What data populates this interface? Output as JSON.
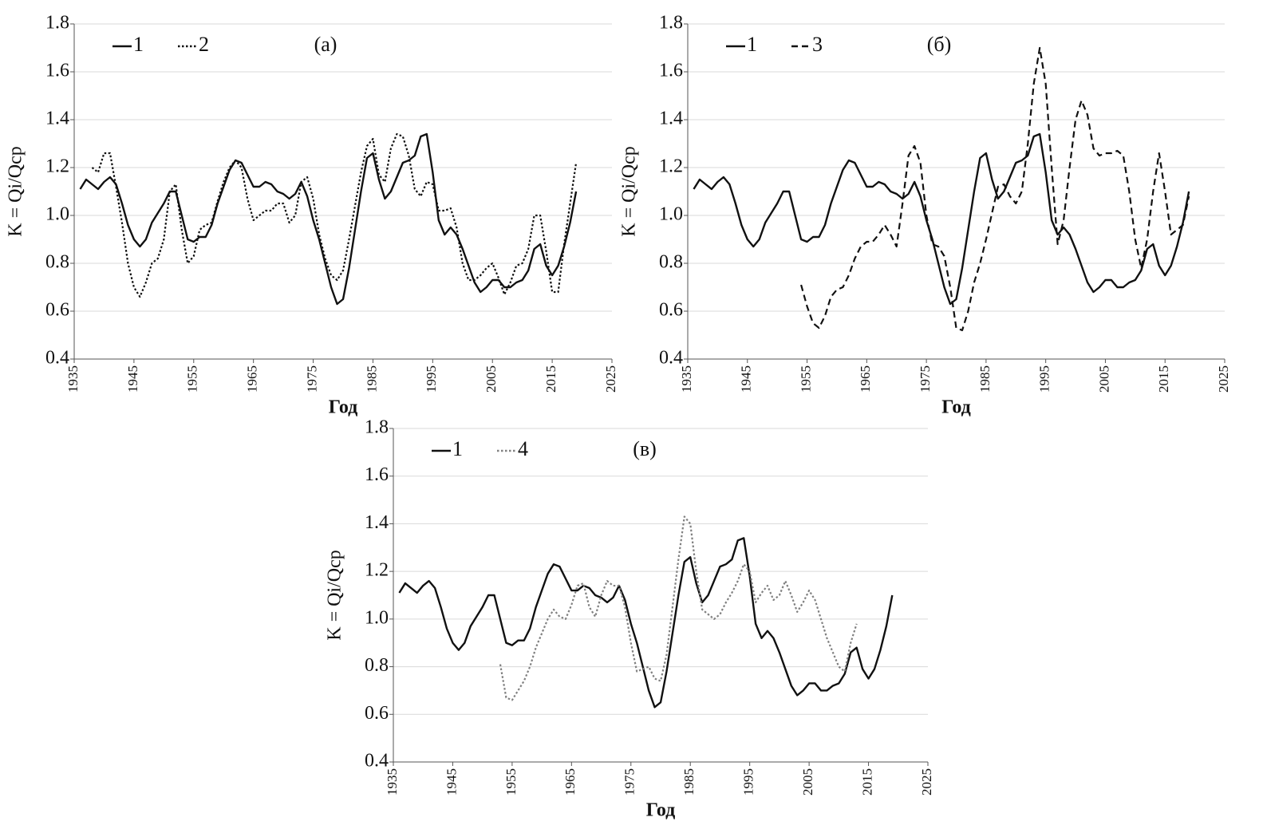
{
  "chart_data": [
    {
      "type": "line",
      "title": "(а)",
      "xlabel": "Год",
      "ylabel": "K = Qi/Qcp",
      "grid": true,
      "xlim": [
        1935,
        2025
      ],
      "ylim": [
        0.4,
        1.8
      ],
      "xticks": [
        1935,
        1945,
        1955,
        1965,
        1975,
        1985,
        1995,
        2005,
        2015,
        2025
      ],
      "yticks": [
        0.4,
        0.6,
        0.8,
        {
          "value": 1,
          "label": "1.0"
        },
        1.2,
        1.4,
        1.6,
        1.8
      ],
      "x": [
        1936,
        1937,
        1938,
        1939,
        1940,
        1941,
        1942,
        1943,
        1944,
        1945,
        1946,
        1947,
        1948,
        1949,
        1950,
        1951,
        1952,
        1953,
        1954,
        1955,
        1956,
        1957,
        1958,
        1959,
        1960,
        1961,
        1962,
        1963,
        1964,
        1965,
        1966,
        1967,
        1968,
        1969,
        1970,
        1971,
        1972,
        1973,
        1974,
        1975,
        1976,
        1977,
        1978,
        1979,
        1980,
        1981,
        1982,
        1983,
        1984,
        1985,
        1986,
        1987,
        1988,
        1989,
        1990,
        1991,
        1992,
        1993,
        1994,
        1995,
        1996,
        1997,
        1998,
        1999,
        2000,
        2001,
        2002,
        2003,
        2004,
        2005,
        2006,
        2007,
        2008,
        2009,
        2010,
        2011,
        2012,
        2013,
        2014,
        2015,
        2016,
        2017,
        2018,
        2019
      ],
      "series": [
        {
          "name": "1",
          "color": "#111111",
          "dash": "solid",
          "values": [
            1.11,
            1.15,
            1.13,
            1.11,
            1.14,
            1.16,
            1.13,
            1.05,
            0.96,
            0.9,
            0.87,
            0.9,
            0.97,
            1.01,
            1.05,
            1.1,
            1.1,
            1.0,
            0.9,
            0.89,
            0.91,
            0.91,
            0.96,
            1.05,
            1.12,
            1.19,
            1.23,
            1.22,
            1.17,
            1.12,
            1.12,
            1.14,
            1.13,
            1.1,
            1.09,
            1.07,
            1.09,
            1.14,
            1.08,
            0.98,
            0.9,
            0.8,
            0.7,
            0.63,
            0.65,
            0.78,
            0.94,
            1.1,
            1.24,
            1.26,
            1.15,
            1.07,
            1.1,
            1.16,
            1.22,
            1.23,
            1.25,
            1.33,
            1.34,
            1.18,
            0.98,
            0.92,
            0.95,
            0.92,
            0.86,
            0.79,
            0.72,
            0.68,
            0.7,
            0.73,
            0.73,
            0.7,
            0.7,
            0.72,
            0.73,
            0.77,
            0.86,
            0.88,
            0.79,
            0.75,
            0.79,
            0.87,
            0.97,
            1.1
          ]
        },
        {
          "name": "2",
          "color": "#111111",
          "dash": "dotted",
          "values": [
            null,
            null,
            1.2,
            1.18,
            1.26,
            1.26,
            1.12,
            0.97,
            0.8,
            0.7,
            0.66,
            0.72,
            0.8,
            0.82,
            0.9,
            1.1,
            1.13,
            0.94,
            0.8,
            0.83,
            0.94,
            0.96,
            0.97,
            1.06,
            1.14,
            1.2,
            1.23,
            1.2,
            1.07,
            0.98,
            1.0,
            1.02,
            1.02,
            1.05,
            1.05,
            0.97,
            1.0,
            1.14,
            1.16,
            1.07,
            0.92,
            0.82,
            0.75,
            0.73,
            0.77,
            0.9,
            1.04,
            1.18,
            1.29,
            1.32,
            1.17,
            1.14,
            1.28,
            1.34,
            1.33,
            1.25,
            1.11,
            1.08,
            1.14,
            1.13,
            1.02,
            1.02,
            1.03,
            0.95,
            0.8,
            0.73,
            0.73,
            0.75,
            0.78,
            0.8,
            0.74,
            0.67,
            0.72,
            0.79,
            0.8,
            0.86,
            1.0,
            1.0,
            0.85,
            0.68,
            0.68,
            0.88,
            1.05,
            1.22
          ]
        }
      ]
    },
    {
      "type": "line",
      "title": "(б)",
      "xlabel": "Год",
      "ylabel": "K = Qi/Qcp",
      "grid": true,
      "xlim": [
        1935,
        2025
      ],
      "ylim": [
        0.4,
        1.8
      ],
      "xticks": [
        1935,
        1945,
        1955,
        1965,
        1975,
        1985,
        1995,
        2005,
        2015,
        2025
      ],
      "yticks": [
        0.4,
        0.6,
        0.8,
        {
          "value": 1,
          "label": "1.0"
        },
        1.2,
        1.4,
        1.6,
        1.8
      ],
      "x": [
        1936,
        1937,
        1938,
        1939,
        1940,
        1941,
        1942,
        1943,
        1944,
        1945,
        1946,
        1947,
        1948,
        1949,
        1950,
        1951,
        1952,
        1953,
        1954,
        1955,
        1956,
        1957,
        1958,
        1959,
        1960,
        1961,
        1962,
        1963,
        1964,
        1965,
        1966,
        1967,
        1968,
        1969,
        1970,
        1971,
        1972,
        1973,
        1974,
        1975,
        1976,
        1977,
        1978,
        1979,
        1980,
        1981,
        1982,
        1983,
        1984,
        1985,
        1986,
        1987,
        1988,
        1989,
        1990,
        1991,
        1992,
        1993,
        1994,
        1995,
        1996,
        1997,
        1998,
        1999,
        2000,
        2001,
        2002,
        2003,
        2004,
        2005,
        2006,
        2007,
        2008,
        2009,
        2010,
        2011,
        2012,
        2013,
        2014,
        2015,
        2016,
        2017,
        2018,
        2019
      ],
      "series": [
        {
          "name": "1",
          "color": "#111111",
          "dash": "solid",
          "values": [
            1.11,
            1.15,
            1.13,
            1.11,
            1.14,
            1.16,
            1.13,
            1.05,
            0.96,
            0.9,
            0.87,
            0.9,
            0.97,
            1.01,
            1.05,
            1.1,
            1.1,
            1.0,
            0.9,
            0.89,
            0.91,
            0.91,
            0.96,
            1.05,
            1.12,
            1.19,
            1.23,
            1.22,
            1.17,
            1.12,
            1.12,
            1.14,
            1.13,
            1.1,
            1.09,
            1.07,
            1.09,
            1.14,
            1.08,
            0.98,
            0.9,
            0.8,
            0.7,
            0.63,
            0.65,
            0.78,
            0.94,
            1.1,
            1.24,
            1.26,
            1.15,
            1.07,
            1.1,
            1.16,
            1.22,
            1.23,
            1.25,
            1.33,
            1.34,
            1.18,
            0.98,
            0.92,
            0.95,
            0.92,
            0.86,
            0.79,
            0.72,
            0.68,
            0.7,
            0.73,
            0.73,
            0.7,
            0.7,
            0.72,
            0.73,
            0.77,
            0.86,
            0.88,
            0.79,
            0.75,
            0.79,
            0.87,
            0.97,
            1.1
          ]
        },
        {
          "name": "3",
          "color": "#111111",
          "dash": "dashed",
          "values": [
            null,
            null,
            null,
            null,
            null,
            null,
            null,
            null,
            null,
            null,
            null,
            null,
            null,
            null,
            null,
            null,
            null,
            null,
            0.71,
            0.62,
            0.55,
            0.53,
            0.58,
            0.66,
            0.69,
            0.7,
            0.75,
            0.82,
            0.87,
            0.89,
            0.89,
            0.92,
            0.96,
            0.92,
            0.87,
            1.05,
            1.25,
            1.29,
            1.22,
            1.0,
            0.88,
            0.87,
            0.83,
            0.7,
            0.53,
            0.52,
            0.6,
            0.72,
            0.8,
            0.9,
            1.01,
            1.12,
            1.13,
            1.08,
            1.05,
            1.1,
            1.3,
            1.55,
            1.7,
            1.55,
            1.2,
            0.88,
            0.98,
            1.2,
            1.4,
            1.48,
            1.42,
            1.28,
            1.25,
            1.26,
            1.26,
            1.27,
            1.25,
            1.1,
            0.9,
            0.78,
            0.9,
            1.1,
            1.26,
            1.1,
            0.92,
            0.94,
            0.96,
            1.08
          ]
        }
      ]
    },
    {
      "type": "line",
      "title": "(в)",
      "xlabel": "Год",
      "ylabel": "K = Qi/Qcp",
      "grid": true,
      "xlim": [
        1935,
        2025
      ],
      "ylim": [
        0.4,
        1.8
      ],
      "xticks": [
        1935,
        1945,
        1955,
        1965,
        1975,
        1985,
        1995,
        2005,
        2015,
        2025
      ],
      "yticks": [
        0.4,
        0.6,
        0.8,
        {
          "value": 1,
          "label": "1.0"
        },
        1.2,
        1.4,
        1.6,
        1.8
      ],
      "x": [
        1936,
        1937,
        1938,
        1939,
        1940,
        1941,
        1942,
        1943,
        1944,
        1945,
        1946,
        1947,
        1948,
        1949,
        1950,
        1951,
        1952,
        1953,
        1954,
        1955,
        1956,
        1957,
        1958,
        1959,
        1960,
        1961,
        1962,
        1963,
        1964,
        1965,
        1966,
        1967,
        1968,
        1969,
        1970,
        1971,
        1972,
        1973,
        1974,
        1975,
        1976,
        1977,
        1978,
        1979,
        1980,
        1981,
        1982,
        1983,
        1984,
        1985,
        1986,
        1987,
        1988,
        1989,
        1990,
        1991,
        1992,
        1993,
        1994,
        1995,
        1996,
        1997,
        1998,
        1999,
        2000,
        2001,
        2002,
        2003,
        2004,
        2005,
        2006,
        2007,
        2008,
        2009,
        2010,
        2011,
        2012,
        2013,
        2014,
        2015,
        2016,
        2017,
        2018,
        2019
      ],
      "series": [
        {
          "name": "1",
          "color": "#111111",
          "dash": "solid",
          "values": [
            1.11,
            1.15,
            1.13,
            1.11,
            1.14,
            1.16,
            1.13,
            1.05,
            0.96,
            0.9,
            0.87,
            0.9,
            0.97,
            1.01,
            1.05,
            1.1,
            1.1,
            1.0,
            0.9,
            0.89,
            0.91,
            0.91,
            0.96,
            1.05,
            1.12,
            1.19,
            1.23,
            1.22,
            1.17,
            1.12,
            1.12,
            1.14,
            1.13,
            1.1,
            1.09,
            1.07,
            1.09,
            1.14,
            1.08,
            0.98,
            0.9,
            0.8,
            0.7,
            0.63,
            0.65,
            0.78,
            0.94,
            1.1,
            1.24,
            1.26,
            1.15,
            1.07,
            1.1,
            1.16,
            1.22,
            1.23,
            1.25,
            1.33,
            1.34,
            1.18,
            0.98,
            0.92,
            0.95,
            0.92,
            0.86,
            0.79,
            0.72,
            0.68,
            0.7,
            0.73,
            0.73,
            0.7,
            0.7,
            0.72,
            0.73,
            0.77,
            0.86,
            0.88,
            0.79,
            0.75,
            0.79,
            0.87,
            0.97,
            1.1
          ]
        },
        {
          "name": "4",
          "color": "#808080",
          "dash": "dotted",
          "values": [
            null,
            null,
            null,
            null,
            null,
            null,
            null,
            null,
            null,
            null,
            null,
            null,
            null,
            null,
            null,
            null,
            null,
            0.81,
            0.67,
            0.66,
            0.7,
            0.74,
            0.8,
            0.88,
            0.94,
            1.0,
            1.04,
            1.01,
            1.0,
            1.06,
            1.14,
            1.15,
            1.05,
            1.01,
            1.1,
            1.16,
            1.14,
            1.14,
            1.05,
            0.9,
            0.78,
            0.79,
            0.8,
            0.75,
            0.74,
            0.85,
            1.05,
            1.25,
            1.43,
            1.4,
            1.2,
            1.04,
            1.02,
            1.0,
            1.02,
            1.07,
            1.11,
            1.16,
            1.23,
            1.2,
            1.07,
            1.11,
            1.14,
            1.08,
            1.1,
            1.16,
            1.1,
            1.03,
            1.07,
            1.12,
            1.08,
            1.0,
            0.92,
            0.86,
            0.8,
            0.78,
            0.9,
            0.98,
            null,
            null,
            null,
            null,
            null,
            null
          ]
        }
      ]
    }
  ]
}
